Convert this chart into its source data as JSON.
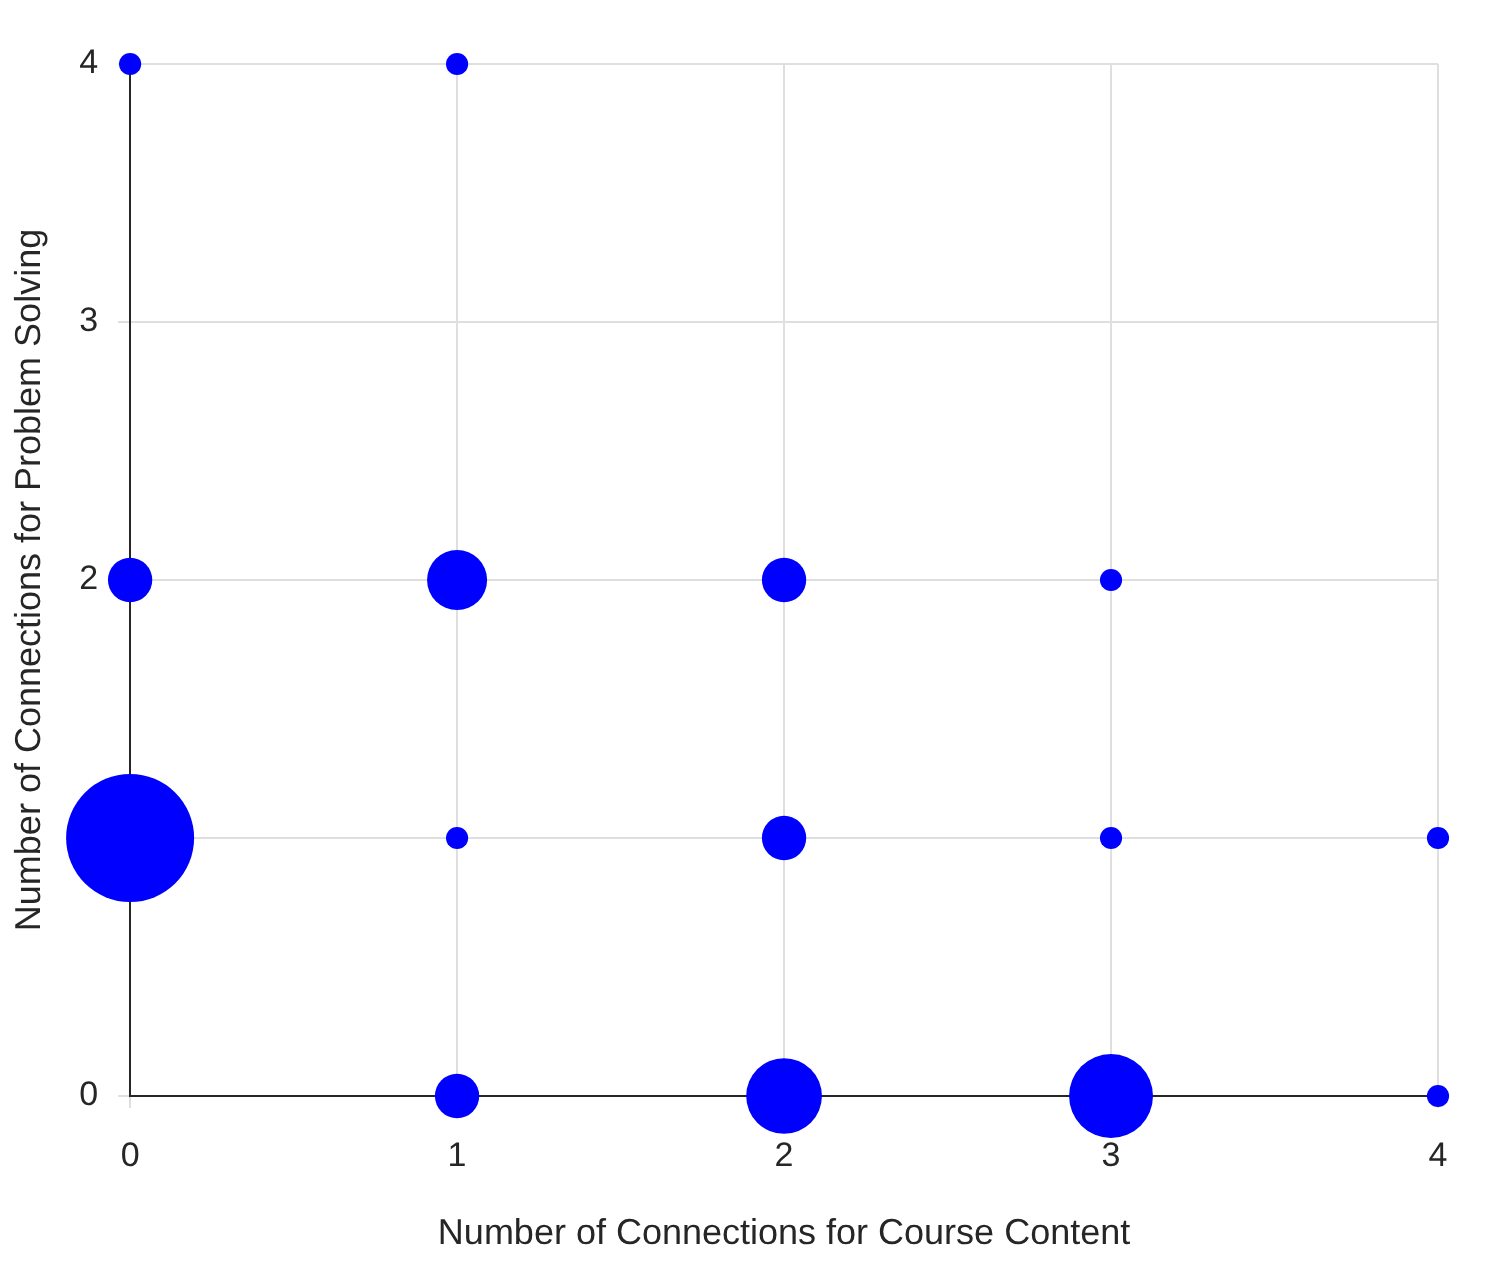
{
  "chart_data": {
    "type": "bubble",
    "xlabel": "Number of Connections for Course Content",
    "ylabel": "Number of Connections for Problem Solving",
    "x": [
      0,
      1,
      0,
      1,
      2,
      3,
      0,
      1,
      2,
      3,
      4,
      1,
      2,
      3,
      4
    ],
    "series": [
      {
        "color": "#0000ff",
        "values": [
          4,
          4,
          2,
          2,
          2,
          2,
          1,
          1,
          1,
          1,
          1,
          0,
          0,
          0,
          0
        ],
        "sizes": [
          0.03,
          0.03,
          0.12,
          0.22,
          0.12,
          0.03,
          1,
          0.03,
          0.12,
          0.03,
          0.03,
          0.12,
          0.35,
          0.43,
          0.03
        ]
      }
    ],
    "xlim": [
      0,
      4
    ],
    "xticks": [
      0,
      1,
      2,
      3,
      4
    ],
    "ylim": [
      0,
      4
    ],
    "yticks": [
      0,
      {
        "value": 1,
        "label": null
      },
      2,
      3,
      4
    ],
    "grid": true,
    "legend": false
  }
}
